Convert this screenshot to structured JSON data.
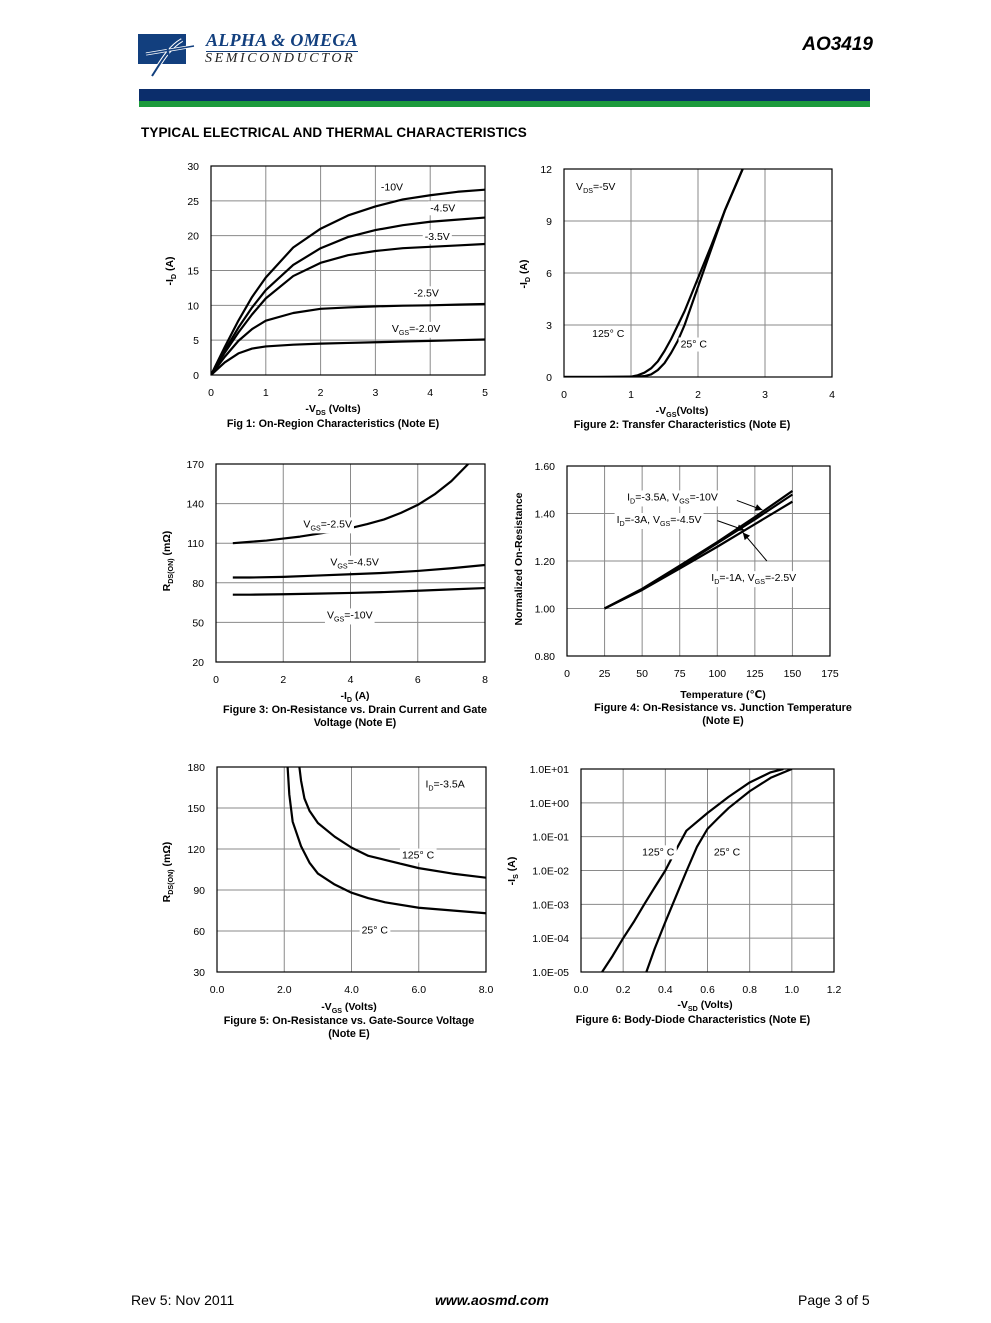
{
  "header": {
    "company_name": "ALPHA & OMEGA",
    "company_sub": "SEMICONDUCTOR",
    "part_number": "AO3419",
    "logo_icon": "alpha-omega-logo-icon",
    "colors": {
      "brand_blue": "#0b2d6b",
      "brand_green": "#1c9a3c"
    }
  },
  "section_title": "TYPICAL ELECTRICAL AND THERMAL CHARACTERISTICS",
  "footer": {
    "revision": "Rev 5: Nov 2011",
    "website": "www.aosmd.com",
    "page": "Page 3 of 5"
  },
  "chart_data": [
    {
      "id": "fig1",
      "type": "line",
      "caption": "Fig 1: On-Region Characteristics (Note E)",
      "xlabel": {
        "main": "-V",
        "sub": "DS",
        "rest": " (Volts)"
      },
      "ylabel": {
        "main": "-I",
        "sub": "D",
        "rest": " (A)"
      },
      "xlim": [
        0,
        5
      ],
      "ylim": [
        0,
        30
      ],
      "xticks": [
        0,
        1,
        2,
        3,
        4,
        5
      ],
      "yticks": [
        0,
        5,
        10,
        15,
        20,
        25,
        30
      ],
      "tick_labels_x": [
        "0",
        "1",
        "2",
        "3",
        "4",
        "5"
      ],
      "tick_labels_y": [
        "0",
        "5",
        "10",
        "15",
        "20",
        "25",
        "30"
      ],
      "grid": true,
      "series": [
        {
          "name": "-10V",
          "x": [
            0,
            0.25,
            0.5,
            0.75,
            1,
            1.5,
            2,
            2.5,
            3,
            3.5,
            4,
            4.5,
            5
          ],
          "y": [
            0,
            4,
            7.8,
            11.2,
            14,
            18.3,
            21,
            22.9,
            24.2,
            25.2,
            25.8,
            26.3,
            26.6
          ]
        },
        {
          "name": "-4.5V",
          "x": [
            0,
            0.25,
            0.5,
            0.75,
            1,
            1.5,
            2,
            2.5,
            3,
            3.5,
            4,
            4.5,
            5
          ],
          "y": [
            0,
            3.5,
            6.8,
            9.7,
            12.2,
            15.8,
            18.2,
            19.8,
            20.8,
            21.5,
            22,
            22.3,
            22.6
          ]
        },
        {
          "name": "-3.5V",
          "x": [
            0,
            0.25,
            0.5,
            0.75,
            1,
            1.5,
            2,
            2.5,
            3,
            3.5,
            4,
            4.5,
            5
          ],
          "y": [
            0,
            3.2,
            6.1,
            8.7,
            11,
            14.2,
            16.1,
            17.2,
            17.8,
            18.2,
            18.4,
            18.6,
            18.8
          ]
        },
        {
          "name": "-2.5V",
          "x": [
            0,
            0.25,
            0.5,
            0.75,
            1,
            1.5,
            2,
            2.5,
            3,
            3.5,
            4,
            4.5,
            5
          ],
          "y": [
            0,
            2.6,
            4.9,
            6.6,
            7.8,
            8.9,
            9.5,
            9.7,
            9.85,
            9.95,
            10,
            10.1,
            10.2
          ]
        },
        {
          "name": "VGS=-2.0V",
          "x": [
            0,
            0.25,
            0.5,
            0.75,
            1,
            1.5,
            2,
            2.5,
            3,
            3.5,
            4,
            4.5,
            5
          ],
          "y": [
            0,
            1.8,
            3.1,
            3.8,
            4.1,
            4.35,
            4.5,
            4.6,
            4.7,
            4.8,
            4.9,
            5,
            5.1
          ]
        }
      ],
      "labels": [
        {
          "t": "-10V",
          "x": 3.1,
          "y": 26.5
        },
        {
          "t": "-4.5V",
          "x": 4.0,
          "y": 23.5
        },
        {
          "t": "-3.5V",
          "x": 3.9,
          "y": 19.4
        },
        {
          "t": "-2.5V",
          "x": 3.7,
          "y": 11.3
        },
        {
          "t": "V",
          "s": "GS",
          "r": "=-2.0V",
          "x": 3.3,
          "y": 6.2
        }
      ]
    },
    {
      "id": "fig2",
      "type": "line",
      "caption": "Figure 2: Transfer Characteristics (Note E)",
      "xlabel": {
        "main": "-V",
        "sub": "GS",
        "rest": "(Volts)"
      },
      "ylabel": {
        "main": "-I",
        "sub": "D",
        "rest": " (A)"
      },
      "xlim": [
        0,
        4
      ],
      "ylim": [
        0,
        12
      ],
      "xticks": [
        0,
        1,
        2,
        3,
        4
      ],
      "yticks": [
        0,
        3,
        6,
        9,
        12
      ],
      "tick_labels_x": [
        "0",
        "1",
        "2",
        "3",
        "4"
      ],
      "tick_labels_y": [
        "0",
        "3",
        "6",
        "9",
        "12"
      ],
      "grid": true,
      "series": [
        {
          "name": "125° C",
          "x": [
            0,
            0.5,
            1,
            1.1,
            1.2,
            1.3,
            1.4,
            1.5,
            1.6,
            1.8,
            2,
            2.2,
            2.4,
            2.6,
            2.7
          ],
          "y": [
            0,
            0,
            0.02,
            0.1,
            0.25,
            0.5,
            0.9,
            1.5,
            2.2,
            3.8,
            5.7,
            7.6,
            9.6,
            11.4,
            12.3
          ]
        },
        {
          "name": "25° C",
          "x": [
            0,
            0.5,
            1,
            1.2,
            1.3,
            1.4,
            1.5,
            1.6,
            1.7,
            1.8,
            2,
            2.2,
            2.4,
            2.6,
            2.7
          ],
          "y": [
            0,
            0,
            0,
            0.05,
            0.15,
            0.4,
            0.8,
            1.4,
            2.1,
            3.0,
            5.2,
            7.4,
            9.6,
            11.4,
            12.3
          ]
        }
      ],
      "labels": [
        {
          "t": "V",
          "s": "DS",
          "r": "=-5V",
          "x": 0.18,
          "y": 10.8
        },
        {
          "t": "125° C",
          "x": 0.42,
          "y": 2.3
        },
        {
          "t": "25° C",
          "x": 1.74,
          "y": 1.7
        }
      ]
    },
    {
      "id": "fig3",
      "type": "line",
      "caption": "Figure 3: On-Resistance vs. Drain Current and Gate",
      "caption2": "Voltage (Note E)",
      "xlabel": {
        "main": "-I",
        "sub": "D",
        "rest": " (A)"
      },
      "ylabel": {
        "main": "R",
        "sub": "DS(ON)",
        "rest": " (mΩ)"
      },
      "xlim": [
        0,
        8
      ],
      "ylim": [
        20,
        170
      ],
      "xticks": [
        0,
        2,
        4,
        6,
        8
      ],
      "yticks": [
        20,
        50,
        80,
        110,
        140,
        170
      ],
      "tick_labels_x": [
        "0",
        "2",
        "4",
        "6",
        "8"
      ],
      "tick_labels_y": [
        "20",
        "50",
        "80",
        "110",
        "140",
        "170"
      ],
      "grid": true,
      "series": [
        {
          "name": "VGS=-2.5V",
          "x": [
            0.5,
            1,
            1.5,
            2,
            2.5,
            3,
            3.5,
            4,
            4.5,
            5,
            5.5,
            6,
            6.5,
            7,
            7.5
          ],
          "y": [
            110,
            111,
            112,
            113.5,
            115,
            117,
            119,
            121.5,
            124.5,
            128,
            133,
            139,
            147,
            157,
            170
          ]
        },
        {
          "name": "VGS=-4.5V",
          "x": [
            0.5,
            1,
            2,
            3,
            4,
            5,
            6,
            7,
            8
          ],
          "y": [
            84,
            84,
            84.5,
            85.5,
            86.5,
            87.5,
            89,
            91,
            93.5
          ]
        },
        {
          "name": "VGS=-10V",
          "x": [
            0.5,
            1,
            2,
            3,
            4,
            5,
            6,
            7,
            8
          ],
          "y": [
            71,
            71,
            71.3,
            71.8,
            72.3,
            73,
            74,
            75,
            76
          ]
        }
      ],
      "labels": [
        {
          "t": "V",
          "s": "GS",
          "r": "=-2.5V",
          "x": 2.6,
          "y": 122
        },
        {
          "t": "V",
          "s": "GS",
          "r": "=-4.5V",
          "x": 3.4,
          "y": 93
        },
        {
          "t": "V",
          "s": "GS",
          "r": "=-10V",
          "x": 3.3,
          "y": 53
        }
      ]
    },
    {
      "id": "fig4",
      "type": "line",
      "caption": "Figure 4: On-Resistance vs. Junction Temperature",
      "caption2": "(Note E)",
      "xlabel": {
        "main": "Temperature (℃)",
        "sub": "",
        "rest": ""
      },
      "ylabel": {
        "main": "Normalized On-Resistance",
        "sub": "",
        "rest": ""
      },
      "xlim": [
        0,
        175
      ],
      "ylim": [
        0.8,
        1.6
      ],
      "xticks": [
        0,
        25,
        50,
        75,
        100,
        125,
        150,
        175
      ],
      "yticks": [
        0.8,
        1.0,
        1.2,
        1.4,
        1.6
      ],
      "tick_labels_x": [
        "0",
        "25",
        "50",
        "75",
        "100",
        "125",
        "150",
        "175"
      ],
      "tick_labels_y": [
        "0.80",
        "1.00",
        "1.20",
        "1.40",
        "1.60"
      ],
      "grid": true,
      "series": [
        {
          "name": "ID=-3.5A, VGS=-10V",
          "x": [
            25,
            50,
            75,
            100,
            125,
            150
          ],
          "y": [
            1.0,
            1.083,
            1.18,
            1.28,
            1.385,
            1.495
          ]
        },
        {
          "name": "ID=-3A, VGS=-4.5V",
          "x": [
            25,
            50,
            75,
            100,
            125,
            150
          ],
          "y": [
            1.0,
            1.08,
            1.175,
            1.275,
            1.375,
            1.48
          ]
        },
        {
          "name": "ID=-1A, VGS=-2.5V",
          "x": [
            25,
            50,
            75,
            100,
            125,
            150
          ],
          "y": [
            1.0,
            1.078,
            1.168,
            1.26,
            1.355,
            1.45
          ]
        }
      ],
      "labels": [
        {
          "t": "I",
          "s": "D",
          "r": "=-3.5A, V",
          "s2": "GS",
          "r2": "=-10V",
          "x": 40,
          "y": 1.455
        },
        {
          "t": "I",
          "s": "D",
          "r": "=-3A, V",
          "s2": "GS",
          "r2": "=-4.5V",
          "x": 33,
          "y": 1.36
        },
        {
          "t": "I",
          "s": "D",
          "r": "=-1A, V",
          "s2": "GS",
          "r2": "=-2.5V",
          "x": 96,
          "y": 1.115
        }
      ],
      "arrows": [
        {
          "x1": 113,
          "y1": 1.455,
          "x2": 130,
          "y2": 1.415
        },
        {
          "x1": 100,
          "y1": 1.37,
          "x2": 118,
          "y2": 1.33
        },
        {
          "x1": 133,
          "y1": 1.2,
          "x2": 117,
          "y2": 1.32
        }
      ]
    },
    {
      "id": "fig5",
      "type": "line",
      "caption": "Figure 5: On-Resistance vs. Gate-Source Voltage",
      "caption2": "(Note E)",
      "xlabel": {
        "main": "-V",
        "sub": "GS",
        "rest": " (Volts)"
      },
      "ylabel": {
        "main": "R",
        "sub": "DS(ON)",
        "rest": " (mΩ)"
      },
      "xlim": [
        0,
        8
      ],
      "ylim": [
        30,
        180
      ],
      "xticks": [
        0,
        2,
        4,
        6,
        8
      ],
      "yticks": [
        30,
        60,
        90,
        120,
        150,
        180
      ],
      "tick_labels_x": [
        "0.0",
        "2.0",
        "4.0",
        "6.0",
        "8.0"
      ],
      "tick_labels_y": [
        "30",
        "60",
        "90",
        "120",
        "150",
        "180"
      ],
      "grid": true,
      "series": [
        {
          "name": "125° C",
          "x": [
            2.45,
            2.5,
            2.6,
            2.75,
            3,
            3.5,
            4,
            4.5,
            5,
            6,
            7,
            8
          ],
          "y": [
            180,
            170,
            157,
            148,
            139,
            129,
            121,
            115,
            112,
            106,
            102,
            99
          ]
        },
        {
          "name": "25° C",
          "x": [
            2.1,
            2.15,
            2.25,
            2.5,
            2.75,
            3,
            3.5,
            4,
            4.5,
            5,
            6,
            7,
            8
          ],
          "y": [
            180,
            160,
            140,
            122,
            110,
            102,
            94,
            88,
            84,
            81,
            77,
            75,
            73
          ]
        }
      ],
      "labels": [
        {
          "t": "I",
          "s": "D",
          "r": "=-3.5A",
          "x": 6.2,
          "y": 165
        },
        {
          "t": "125° C",
          "x": 5.5,
          "y": 113
        },
        {
          "t": "25° C",
          "x": 4.3,
          "y": 58
        }
      ]
    },
    {
      "id": "fig6",
      "type": "line",
      "ylog": true,
      "caption": "Figure 6: Body-Diode Characteristics (Note E)",
      "xlabel": {
        "main": "-V",
        "sub": "SD",
        "rest": " (Volts)"
      },
      "ylabel": {
        "main": "-I",
        "sub": "S",
        "rest": " (A)"
      },
      "xlim": [
        0,
        1.2
      ],
      "ylim": [
        1e-05,
        10
      ],
      "xticks": [
        0,
        0.2,
        0.4,
        0.6,
        0.8,
        1.0,
        1.2
      ],
      "yticks": [
        1e-05,
        0.0001,
        0.001,
        0.01,
        0.1,
        1,
        10
      ],
      "tick_labels_x": [
        "0.0",
        "0.2",
        "0.4",
        "0.6",
        "0.8",
        "1.0",
        "1.2"
      ],
      "tick_labels_y": [
        "1.0E-05",
        "1.0E-04",
        "1.0E-03",
        "1.0E-02",
        "1.0E-01",
        "1.0E+00",
        "1.0E+01"
      ],
      "grid": true,
      "series": [
        {
          "name": "125° C",
          "x": [
            0.1,
            0.15,
            0.2,
            0.25,
            0.3,
            0.35,
            0.4,
            0.45,
            0.5,
            0.6,
            0.7,
            0.8,
            0.9,
            0.96
          ],
          "y": [
            1e-05,
            3e-05,
            0.0001,
            0.0003,
            0.001,
            0.0032,
            0.01,
            0.04,
            0.15,
            0.5,
            1.5,
            4,
            8,
            10
          ]
        },
        {
          "name": "25° C",
          "x": [
            0.31,
            0.35,
            0.4,
            0.45,
            0.5,
            0.55,
            0.6,
            0.65,
            0.7,
            0.8,
            0.9,
            1.0
          ],
          "y": [
            1e-05,
            5e-05,
            0.0003,
            0.0017,
            0.0095,
            0.05,
            0.17,
            0.35,
            0.7,
            2.2,
            5.5,
            10
          ]
        }
      ],
      "labels": [
        {
          "t": "125° C",
          "x": 0.29,
          "y": 0.028
        },
        {
          "t": "25° C",
          "x": 0.63,
          "y": 0.028
        }
      ]
    }
  ]
}
